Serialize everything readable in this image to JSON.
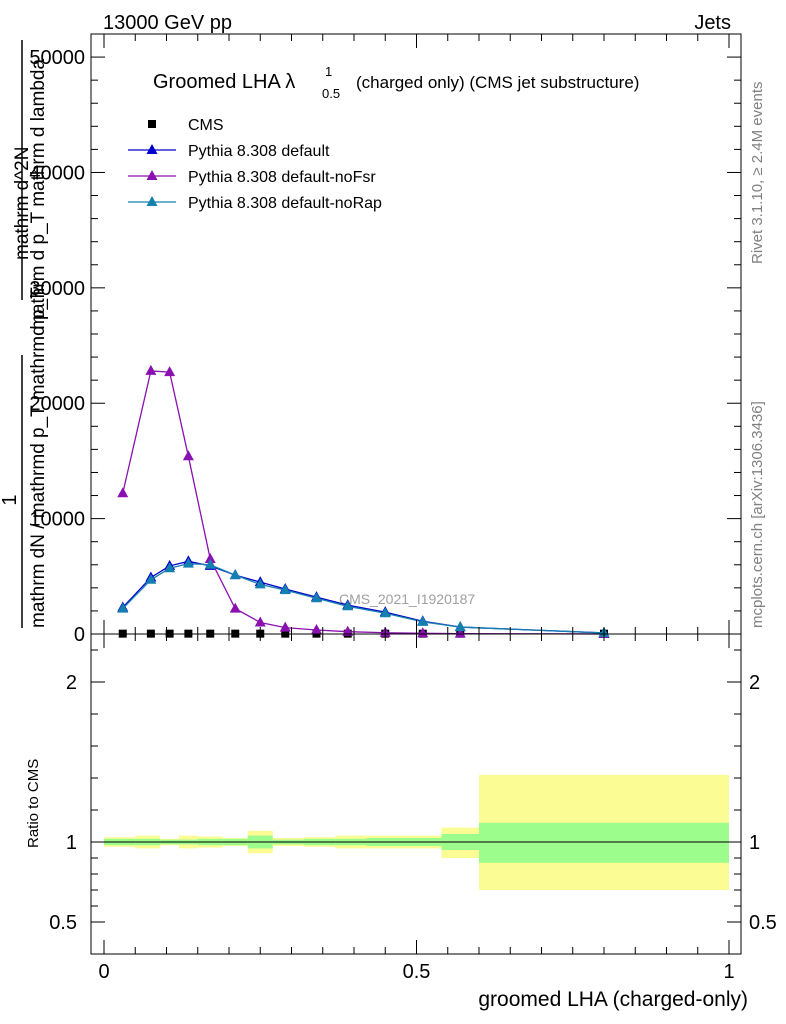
{
  "header": {
    "left": "13000 GeV pp",
    "right": "Jets"
  },
  "side_labels": {
    "rivet": "Rivet 3.1.10, ≥ 2.4M events",
    "site": "mcplots.cern.ch [arXiv:1306.3436]"
  },
  "chart_data": [
    {
      "type": "line",
      "title": {
        "main": "Groomed LHA ",
        "lambda": "λ",
        "sup": "1",
        "sub": "0.5",
        "rest": "(charged only) (CMS jet substructure)"
      },
      "watermark": "CMS_2021_I1920187",
      "ylabel_lines": [
        "1",
        "mathrm dN / mathrmd p_T mathrmd p_T",
        "mathrm d^2N",
        "mathrm d p_T mathrm d lambda"
      ],
      "xlim": [
        0,
        1
      ],
      "ylim": [
        0,
        52000
      ],
      "yticks": [
        0,
        10000,
        20000,
        30000,
        40000,
        50000
      ],
      "ytick_labels": [
        "0",
        "10000",
        "20000",
        "30000",
        "40000",
        "50000"
      ],
      "legend_position": "top-left",
      "series": [
        {
          "name": "CMS",
          "marker": "square",
          "color": "#000000",
          "x": [
            0.03,
            0.075,
            0.105,
            0.135,
            0.17,
            0.21,
            0.25,
            0.29,
            0.34,
            0.39,
            0.45,
            0.51,
            0.57,
            0.8
          ],
          "y": [
            30,
            30,
            30,
            30,
            30,
            30,
            30,
            30,
            30,
            30,
            30,
            30,
            30,
            30
          ]
        },
        {
          "name": "Pythia 8.308 default",
          "marker": "triangle",
          "color": "#0000cc",
          "x": [
            0.03,
            0.075,
            0.105,
            0.135,
            0.17,
            0.21,
            0.25,
            0.29,
            0.34,
            0.39,
            0.45,
            0.51,
            0.57,
            0.8
          ],
          "y": [
            2300,
            4900,
            5900,
            6300,
            5900,
            5100,
            4500,
            3900,
            3200,
            2500,
            1900,
            1100,
            600,
            90
          ]
        },
        {
          "name": "Pythia 8.308 default-noFsr",
          "marker": "triangle",
          "color": "#8a10b0",
          "x": [
            0.03,
            0.075,
            0.105,
            0.135,
            0.17,
            0.21,
            0.25,
            0.29,
            0.34,
            0.39,
            0.45,
            0.51,
            0.57,
            0.8
          ],
          "y": [
            12200,
            22800,
            22700,
            15400,
            6500,
            2200,
            1000,
            550,
            350,
            200,
            110,
            60,
            30,
            5
          ]
        },
        {
          "name": "Pythia 8.308 default-noRap",
          "marker": "triangle",
          "color": "#1580b0",
          "x": [
            0.03,
            0.075,
            0.105,
            0.135,
            0.17,
            0.21,
            0.25,
            0.29,
            0.34,
            0.39,
            0.45,
            0.51,
            0.57,
            0.8
          ],
          "y": [
            2200,
            4700,
            5700,
            6100,
            6000,
            5100,
            4300,
            3800,
            3100,
            2400,
            1800,
            1050,
            600,
            90
          ]
        }
      ]
    },
    {
      "type": "area",
      "ylabel": "Ratio to CMS",
      "xlabel": "groomed LHA (charged-only)",
      "xlim": [
        0,
        1
      ],
      "ylim": [
        0.3,
        2.3
      ],
      "yticks": [
        0.5,
        1,
        2
      ],
      "ytick_labels": [
        "0.5",
        "1",
        "2"
      ],
      "xticks": [
        0,
        0.5,
        1
      ],
      "xtick_labels": [
        "0",
        "0.5",
        "1"
      ],
      "bins": [
        0,
        0.05,
        0.09,
        0.12,
        0.15,
        0.19,
        0.23,
        0.27,
        0.32,
        0.37,
        0.42,
        0.48,
        0.54,
        0.6,
        1.0
      ],
      "band_inner": [
        [
          0.98,
          1.02
        ],
        [
          0.98,
          1.02
        ],
        [
          0.985,
          1.015
        ],
        [
          0.985,
          1.015
        ],
        [
          0.98,
          1.02
        ],
        [
          0.98,
          1.02
        ],
        [
          0.96,
          1.04
        ],
        [
          0.985,
          1.015
        ],
        [
          0.98,
          1.02
        ],
        [
          0.98,
          1.02
        ],
        [
          0.975,
          1.025
        ],
        [
          0.975,
          1.025
        ],
        [
          0.95,
          1.05
        ],
        [
          0.87,
          1.12
        ]
      ],
      "band_outer": [
        [
          0.97,
          1.03
        ],
        [
          0.96,
          1.04
        ],
        [
          0.98,
          1.02
        ],
        [
          0.96,
          1.04
        ],
        [
          0.965,
          1.035
        ],
        [
          0.975,
          1.025
        ],
        [
          0.93,
          1.07
        ],
        [
          0.975,
          1.025
        ],
        [
          0.97,
          1.03
        ],
        [
          0.96,
          1.04
        ],
        [
          0.96,
          1.04
        ],
        [
          0.96,
          1.04
        ],
        [
          0.9,
          1.09
        ],
        [
          0.7,
          1.42
        ]
      ],
      "colors": {
        "inner": "#9cfc8c",
        "outer": "#fcfc94"
      }
    }
  ]
}
